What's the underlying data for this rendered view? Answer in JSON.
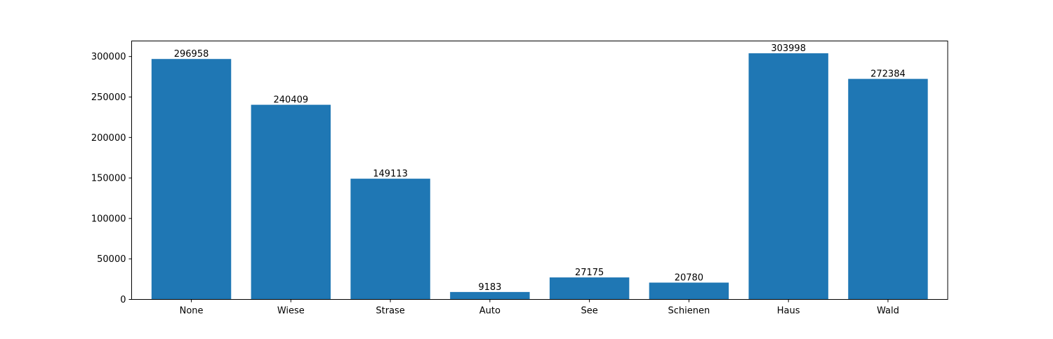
{
  "chart_data": {
    "type": "bar",
    "title": "",
    "xlabel": "",
    "ylabel": "",
    "categories": [
      "None",
      "Wiese",
      "Strase",
      "Auto",
      "See",
      "Schienen",
      "Haus",
      "Wald"
    ],
    "values": [
      296958,
      240409,
      149113,
      9183,
      27175,
      20780,
      303998,
      272384
    ],
    "data_labels": [
      "296958",
      "240409",
      "149113",
      "9183",
      "27175",
      "20780",
      "303998",
      "272384"
    ],
    "ylim": [
      0,
      319198
    ],
    "yticks": [
      0,
      50000,
      100000,
      150000,
      200000,
      250000,
      300000
    ],
    "ytick_labels": [
      "0",
      "50000",
      "100000",
      "150000",
      "200000",
      "250000",
      "300000"
    ],
    "grid": false,
    "legend": "none",
    "bar_color": "#1f77b4"
  }
}
